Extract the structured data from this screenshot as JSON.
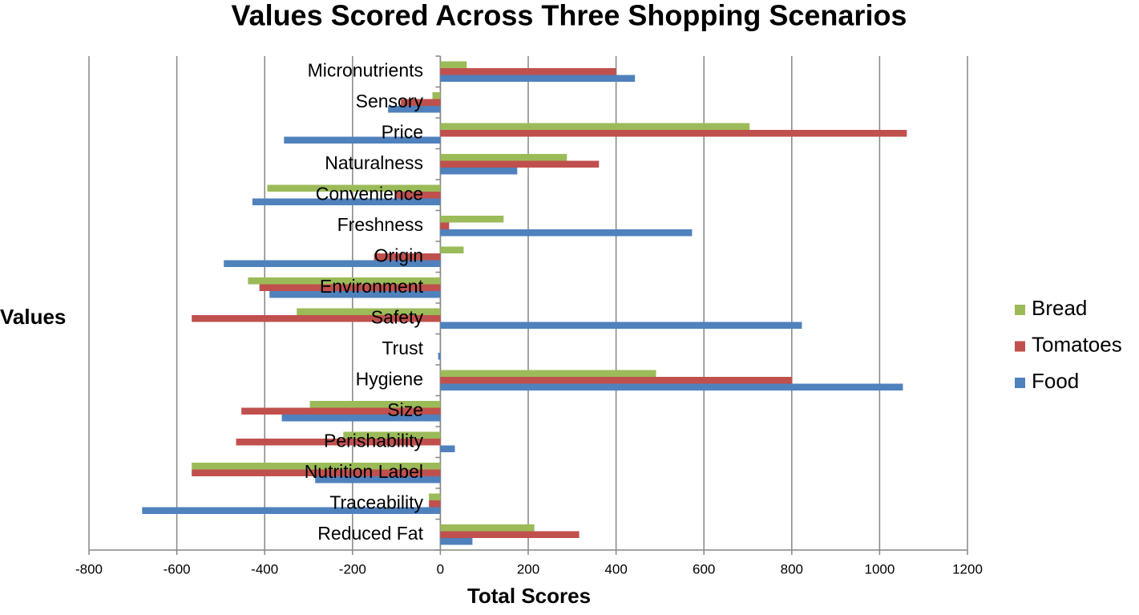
{
  "chart_data": {
    "type": "bar",
    "orientation": "horizontal",
    "title": "Values Scored Across Three Shopping Scenarios",
    "xlabel": "Total Scores",
    "ylabel": "Values",
    "categories": [
      "Micronutrients",
      "Sensory",
      "Price",
      "Naturalness",
      "Convenience",
      "Freshness",
      "Origin",
      "Environment",
      "Safety",
      "Trust",
      "Hygiene",
      "Size",
      "Perishability",
      "Nutrition Label",
      "Traceability",
      "Reduced Fat"
    ],
    "series": [
      {
        "name": "Bread",
        "color": "#9bbb59",
        "values": [
          60,
          -18,
          704,
          288,
          -394,
          144,
          53,
          -438,
          -327,
          0,
          491,
          -297,
          -221,
          -566,
          -26,
          214
        ]
      },
      {
        "name": "Tomatoes",
        "color": "#c0504d",
        "values": [
          400,
          -90,
          1062,
          361,
          -100,
          20,
          -151,
          -412,
          -566,
          0,
          801,
          -453,
          -465,
          -566,
          -26,
          316
        ]
      },
      {
        "name": "Food",
        "color": "#4f81bd",
        "values": [
          443,
          -119,
          -356,
          175,
          -428,
          573,
          -493,
          -389,
          823,
          -5,
          1053,
          -361,
          33,
          -285,
          -679,
          73
        ]
      }
    ],
    "xlim": [
      -800,
      1200
    ],
    "xticks": [
      -800,
      -600,
      -400,
      -200,
      0,
      200,
      400,
      600,
      800,
      1000,
      1200
    ],
    "grid": true,
    "legend": "right"
  }
}
